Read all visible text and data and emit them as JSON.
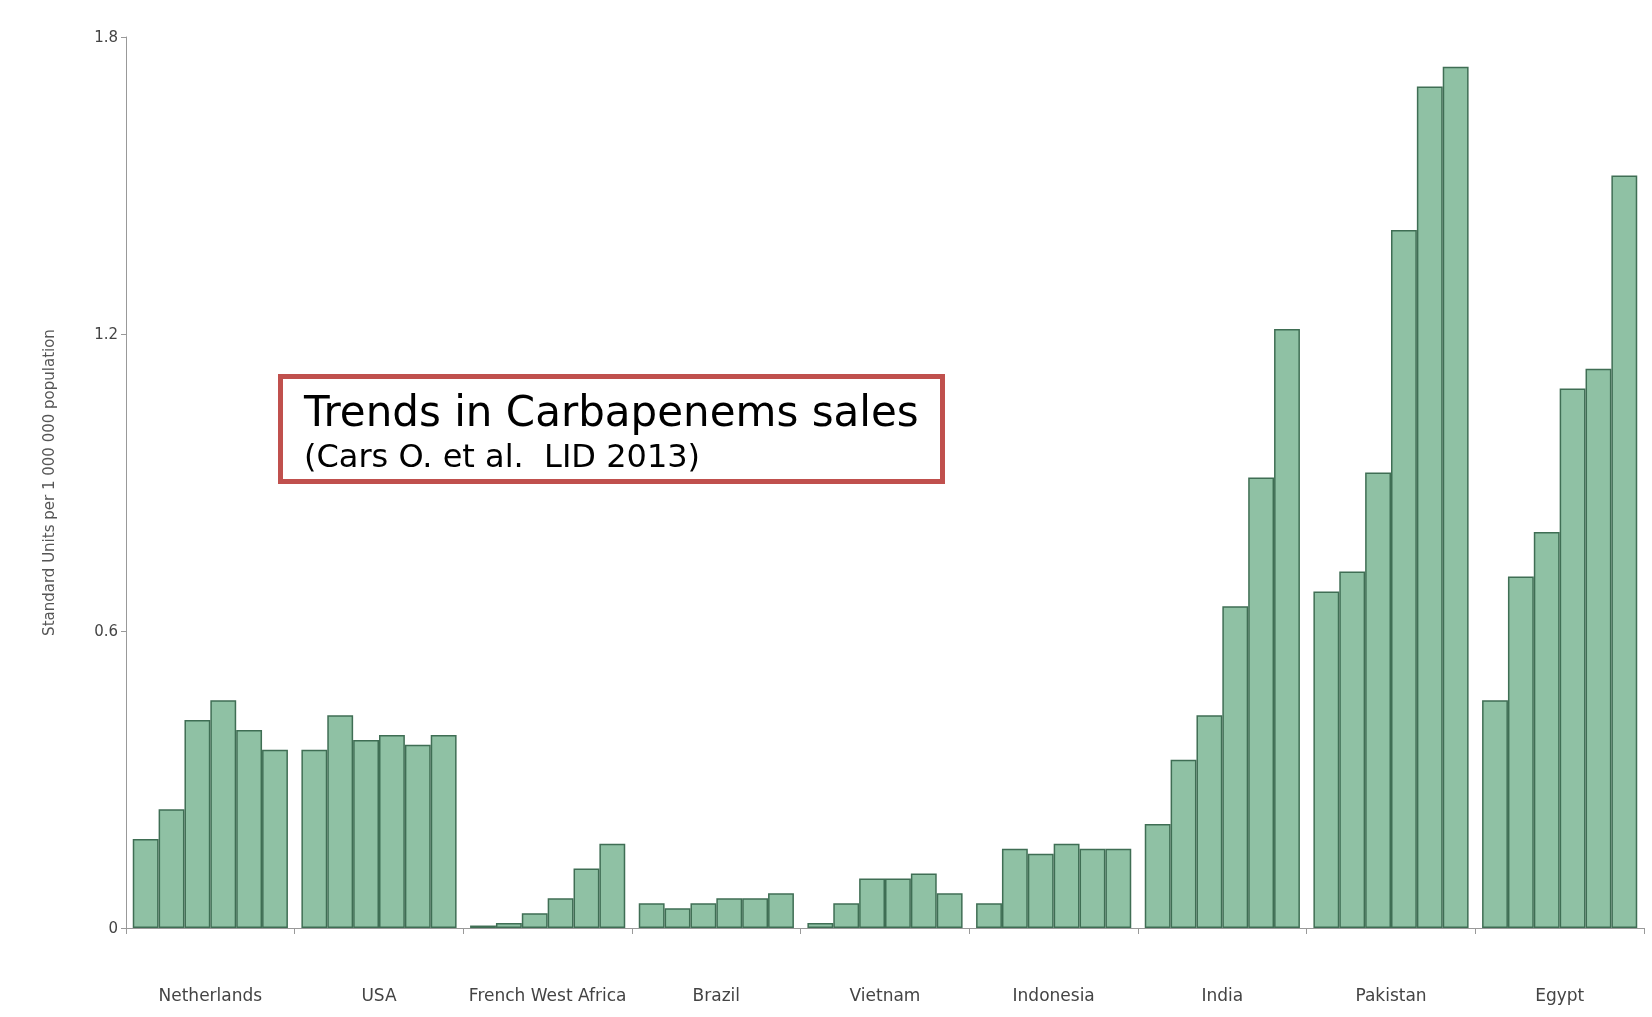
{
  "chart_data": {
    "type": "bar",
    "title": "Trends in Carbapenems sales",
    "subtitle": "(Cars O. et al.  LID 2013)",
    "ylabel": "Standard Units per 1 000 000 population",
    "categories": [
      "Netherlands",
      "USA",
      "French West Africa",
      "Brazil",
      "Vietnam",
      "Indonesia",
      "India",
      "Pakistan",
      "Egypt"
    ],
    "series": [
      {
        "color": "#8fc1a4",
        "values": [
          0.18,
          0.36,
          0.005,
          0.05,
          0.01,
          0.05,
          0.21,
          0.68,
          0.46
        ]
      },
      {
        "color": "#8fc1a4",
        "values": [
          0.24,
          0.43,
          0.01,
          0.04,
          0.05,
          0.16,
          0.34,
          0.72,
          0.71
        ]
      },
      {
        "color": "#8fc1a4",
        "values": [
          0.42,
          0.38,
          0.03,
          0.05,
          0.1,
          0.15,
          0.43,
          0.92,
          0.8
        ]
      },
      {
        "color": "#8fc1a4",
        "values": [
          0.46,
          0.39,
          0.06,
          0.06,
          0.1,
          0.17,
          0.65,
          1.41,
          1.09
        ]
      },
      {
        "color": "#8fc1a4",
        "values": [
          0.4,
          0.37,
          0.12,
          0.06,
          0.11,
          0.16,
          0.91,
          1.7,
          1.13
        ]
      },
      {
        "color": "#8fc1a4",
        "values": [
          0.36,
          0.39,
          0.17,
          0.07,
          0.07,
          0.16,
          1.21,
          1.74,
          1.52
        ]
      }
    ],
    "ylim": [
      0,
      1.8
    ],
    "yticks": [
      0,
      0.6,
      1.2,
      1.8
    ],
    "grid": false
  }
}
